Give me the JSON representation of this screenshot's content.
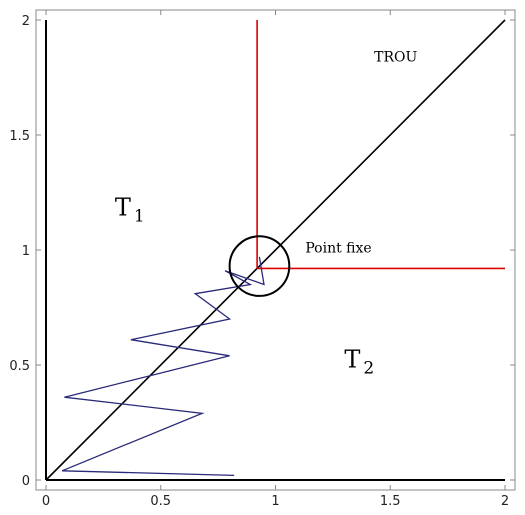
{
  "chart_data": {
    "type": "line",
    "title": "",
    "xlabel": "",
    "ylabel": "",
    "xlim": [
      0,
      2
    ],
    "ylim": [
      0,
      2
    ],
    "xticks": [
      0,
      0.5,
      1,
      1.5,
      2
    ],
    "yticks": [
      0,
      0.5,
      1,
      1.5,
      2
    ],
    "xtick_labels": [
      "0",
      "0.5",
      "1",
      "1.5",
      "2"
    ],
    "ytick_labels": [
      "0",
      "0.5",
      "1",
      "1.5",
      "2"
    ],
    "grid": false,
    "series": [
      {
        "style": "axis-line",
        "color": "#000000",
        "x": [
          0,
          2
        ],
        "y": [
          0,
          0
        ]
      },
      {
        "style": "axis-line",
        "color": "#000000",
        "x": [
          0,
          0
        ],
        "y": [
          0,
          2
        ]
      },
      {
        "style": "diagonal",
        "color": "#000000",
        "x": [
          0,
          2
        ],
        "y": [
          0,
          2
        ]
      },
      {
        "style": "boundary",
        "color": "#dd0000",
        "x": [
          0.92,
          0.92
        ],
        "y": [
          0.92,
          2
        ]
      },
      {
        "style": "boundary",
        "color": "#dd0000",
        "x": [
          0.92,
          2
        ],
        "y": [
          0.92,
          0.92
        ]
      },
      {
        "style": "trajectory",
        "color": "#2a2a7a",
        "x": [
          0.82,
          0.07,
          0.68,
          0.08,
          0.8,
          0.37,
          0.8,
          0.65,
          0.89,
          0.78,
          0.95,
          0.93
        ],
        "y": [
          0.02,
          0.04,
          0.29,
          0.36,
          0.54,
          0.61,
          0.7,
          0.81,
          0.85,
          0.91,
          0.85,
          0.97
        ]
      }
    ],
    "circle": {
      "cx": 0.93,
      "cy": 0.93,
      "r": 0.13,
      "color": "#000000"
    },
    "annotations": [
      {
        "id": "trou",
        "text": "TROU",
        "x": 1.43,
        "y": 1.82
      },
      {
        "id": "t1",
        "text": "T",
        "sub": "1",
        "x": 0.3,
        "y": 1.15
      },
      {
        "id": "point-fixe",
        "text": "Point fixe",
        "x": 1.13,
        "y": 0.99
      },
      {
        "id": "t2",
        "text": "T",
        "sub": "2",
        "x": 1.3,
        "y": 0.49
      }
    ]
  }
}
